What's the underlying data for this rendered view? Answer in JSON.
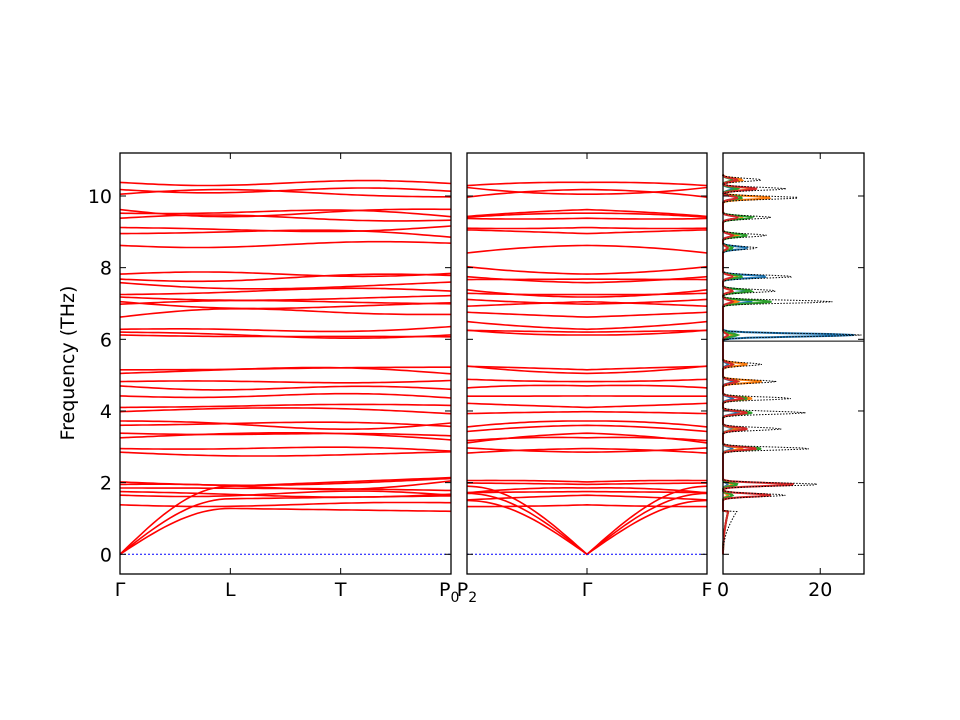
{
  "chart_data": [
    {
      "type": "line",
      "title": "",
      "xlabel": "",
      "ylabel": "Frequency (THz)",
      "ylim": [
        -0.55,
        11.2
      ],
      "y_ticks": [
        "0",
        "2",
        "4",
        "6",
        "8",
        "10"
      ],
      "x_tick_labels": [
        "Γ",
        "L",
        "T",
        "P0"
      ],
      "x_tick_positions": [
        0,
        1,
        2,
        3
      ],
      "zero_line": 0,
      "band_color": "#ff0000",
      "zero_line_color": "#0000ff",
      "bands_at_gamma": [
        0,
        0,
        0,
        1.38,
        1.65,
        1.75,
        1.85,
        1.95,
        2.02,
        2.85,
        2.95,
        3.25,
        3.38,
        3.6,
        3.72,
        3.98,
        4.1,
        4.42,
        4.7,
        4.82,
        5.05,
        5.15,
        6.12,
        6.2,
        6.28,
        6.62,
        6.98,
        7.05,
        7.18,
        7.25,
        7.58,
        7.68,
        7.82,
        8.62,
        8.95,
        9.12,
        9.38,
        9.52,
        9.62,
        10.05,
        10.18,
        10.38
      ]
    },
    {
      "type": "line",
      "title": "",
      "xlabel": "",
      "ylabel": "",
      "ylim": [
        -0.55,
        11.2
      ],
      "x_tick_labels": [
        "P2",
        "Γ",
        "F"
      ],
      "x_tick_positions": [
        0,
        1,
        2
      ],
      "zero_line": 0,
      "band_color": "#ff0000"
    },
    {
      "type": "line",
      "title": "",
      "xlabel": "",
      "ylabel": "",
      "xlim": [
        0,
        29
      ],
      "ylim": [
        -0.55,
        11.2
      ],
      "x_tick_labels": [
        "0",
        "20"
      ],
      "x_ticks": [
        0,
        20
      ],
      "series": [
        {
          "color": "#000000",
          "style": "dotted"
        },
        {
          "color": "#1f77b4"
        },
        {
          "color": "#ff7f0e"
        },
        {
          "color": "#2ca02c"
        },
        {
          "color": "#d62728"
        }
      ],
      "dos_peaks": [
        {
          "freq": 6.12,
          "total": 28.5,
          "proj": [
            27,
            2,
            3,
            1
          ]
        },
        {
          "freq": 7.05,
          "total": 22.5,
          "proj": [
            6,
            3,
            10,
            2
          ]
        },
        {
          "freq": 7.75,
          "total": 14.5,
          "proj": [
            9,
            3,
            4,
            2
          ]
        },
        {
          "freq": 7.35,
          "total": 11,
          "proj": [
            5,
            2,
            6,
            2
          ]
        },
        {
          "freq": 1.95,
          "total": 20,
          "proj": [
            1,
            2,
            3,
            15
          ]
        },
        {
          "freq": 1.65,
          "total": 13,
          "proj": [
            1,
            1,
            2,
            10
          ]
        },
        {
          "freq": 2.95,
          "total": 18,
          "proj": [
            2,
            4,
            8,
            7
          ]
        },
        {
          "freq": 3.95,
          "total": 17,
          "proj": [
            3,
            5,
            6,
            5
          ]
        },
        {
          "freq": 4.35,
          "total": 14,
          "proj": [
            2,
            6,
            5,
            4
          ]
        },
        {
          "freq": 4.82,
          "total": 11,
          "proj": [
            2,
            8,
            3,
            3
          ]
        },
        {
          "freq": 5.3,
          "total": 8,
          "proj": [
            1,
            5,
            2,
            2
          ]
        },
        {
          "freq": 3.5,
          "total": 12,
          "proj": [
            2,
            3,
            5,
            5
          ]
        },
        {
          "freq": 9.95,
          "total": 16,
          "proj": [
            3,
            10,
            4,
            3
          ]
        },
        {
          "freq": 10.2,
          "total": 13,
          "proj": [
            2,
            6,
            3,
            7
          ]
        },
        {
          "freq": 9.4,
          "total": 10,
          "proj": [
            3,
            4,
            6,
            3
          ]
        },
        {
          "freq": 8.9,
          "total": 9,
          "proj": [
            2,
            3,
            5,
            2
          ]
        },
        {
          "freq": 8.55,
          "total": 7,
          "proj": [
            5,
            1,
            2,
            1
          ]
        },
        {
          "freq": 10.45,
          "total": 8,
          "proj": [
            2,
            4,
            2,
            3
          ]
        }
      ]
    }
  ]
}
